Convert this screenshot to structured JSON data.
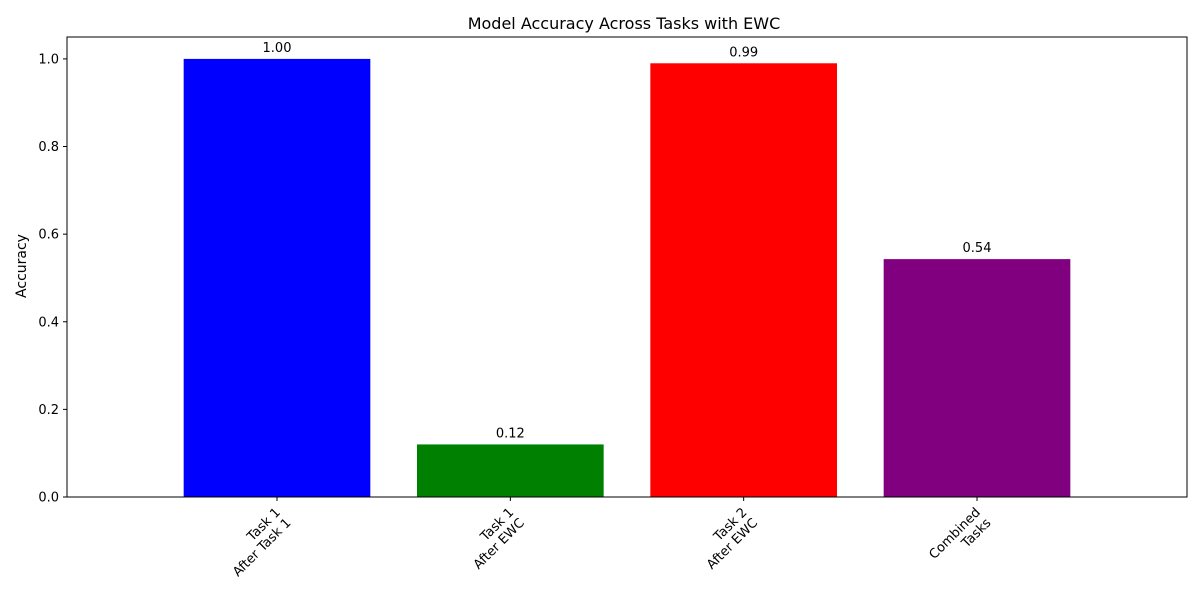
{
  "chart_data": {
    "type": "bar",
    "title": "Model Accuracy Across Tasks with EWC",
    "xlabel": "",
    "ylabel": "Accuracy",
    "categories": [
      [
        "Task 1",
        "After Task 1"
      ],
      [
        "Task 1",
        "After EWC"
      ],
      [
        "Task 2",
        "After EWC"
      ],
      [
        "Combined",
        "Tasks"
      ]
    ],
    "values": [
      1.0,
      0.12,
      0.99,
      0.543
    ],
    "data_labels": [
      "1.00",
      "0.12",
      "0.99",
      "0.54"
    ],
    "colors": [
      "#0000ff",
      "#008000",
      "#ff0000",
      "#800080"
    ],
    "ylim": [
      0,
      1.05
    ],
    "yticks": [
      0.0,
      0.2,
      0.4,
      0.6,
      0.8,
      1.0
    ],
    "ytick_labels": [
      "0.0",
      "0.2",
      "0.4",
      "0.6",
      "0.8",
      "1.0"
    ],
    "grid": false,
    "legend": "none",
    "xtick_rotation_deg": 45
  }
}
